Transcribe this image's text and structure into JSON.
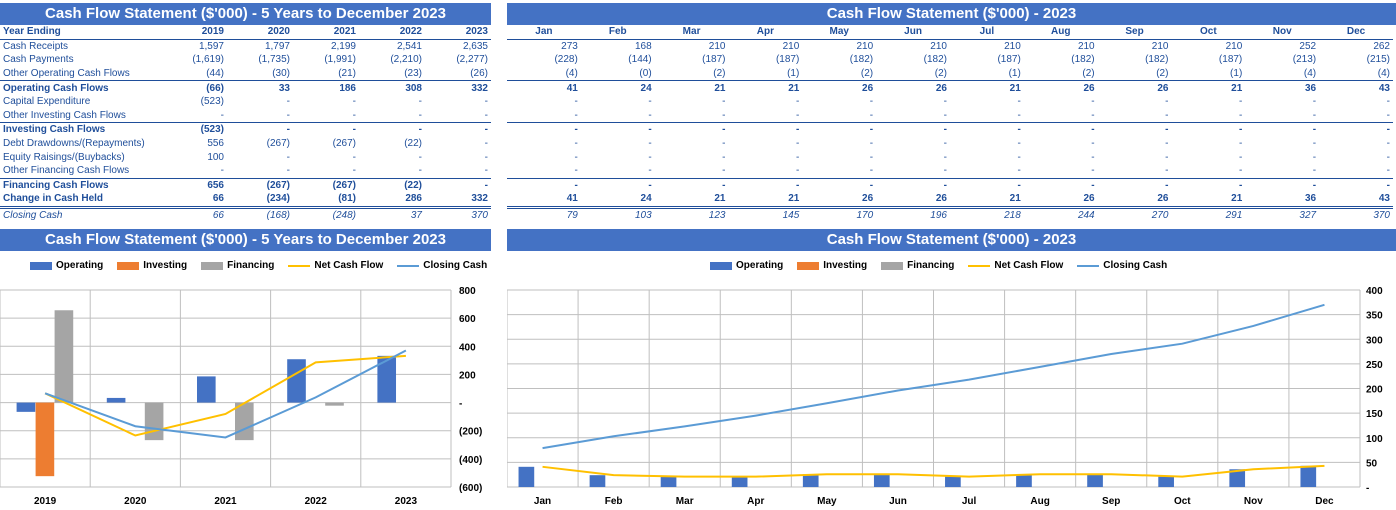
{
  "left_table": {
    "title": "Cash Flow Statement ($'000) - 5 Years to December 2023",
    "header_label": "Year Ending",
    "columns": [
      "2019",
      "2020",
      "2021",
      "2022",
      "2023"
    ],
    "rows": [
      {
        "label": "Cash Receipts",
        "values": [
          "1,597",
          "1,797",
          "2,199",
          "2,541",
          "2,635"
        ]
      },
      {
        "label": "Cash Payments",
        "values": [
          "(1,619)",
          "(1,735)",
          "(1,991)",
          "(2,210)",
          "(2,277)"
        ]
      },
      {
        "label": "Other Operating Cash Flows",
        "values": [
          "(44)",
          "(30)",
          "(21)",
          "(23)",
          "(26)"
        ]
      },
      {
        "label": "Operating Cash Flows",
        "values": [
          "(66)",
          "33",
          "186",
          "308",
          "332"
        ]
      },
      {
        "label": "Capital Expenditure",
        "values": [
          "(523)",
          "-",
          "-",
          "-",
          "-"
        ]
      },
      {
        "label": "Other Investing Cash Flows",
        "values": [
          "-",
          "-",
          "-",
          "-",
          "-"
        ]
      },
      {
        "label": "Investing Cash Flows",
        "values": [
          "(523)",
          "-",
          "-",
          "-",
          "-"
        ]
      },
      {
        "label": "Debt Drawdowns/(Repayments)",
        "values": [
          "556",
          "(267)",
          "(267)",
          "(22)",
          "-"
        ]
      },
      {
        "label": "Equity Raisings/(Buybacks)",
        "values": [
          "100",
          "-",
          "-",
          "-",
          "-"
        ]
      },
      {
        "label": "Other Financing Cash Flows",
        "values": [
          "-",
          "-",
          "-",
          "-",
          "-"
        ]
      },
      {
        "label": "Financing Cash Flows",
        "values": [
          "656",
          "(267)",
          "(267)",
          "(22)",
          "-"
        ]
      },
      {
        "label": "Change in Cash Held",
        "values": [
          "66",
          "(234)",
          "(81)",
          "286",
          "332"
        ]
      },
      {
        "label": "Closing Cash",
        "values": [
          "66",
          "(168)",
          "(248)",
          "37",
          "370"
        ]
      }
    ]
  },
  "right_table": {
    "title": "Cash Flow Statement ($'000) - 2023",
    "columns": [
      "Jan",
      "Feb",
      "Mar",
      "Apr",
      "May",
      "Jun",
      "Jul",
      "Aug",
      "Sep",
      "Oct",
      "Nov",
      "Dec"
    ],
    "rows": [
      {
        "values": [
          "273",
          "168",
          "210",
          "210",
          "210",
          "210",
          "210",
          "210",
          "210",
          "210",
          "252",
          "262"
        ]
      },
      {
        "values": [
          "(228)",
          "(144)",
          "(187)",
          "(187)",
          "(182)",
          "(182)",
          "(187)",
          "(182)",
          "(182)",
          "(187)",
          "(213)",
          "(215)"
        ]
      },
      {
        "values": [
          "(4)",
          "(0)",
          "(2)",
          "(1)",
          "(2)",
          "(2)",
          "(1)",
          "(2)",
          "(2)",
          "(1)",
          "(4)",
          "(4)"
        ]
      },
      {
        "values": [
          "41",
          "24",
          "21",
          "21",
          "26",
          "26",
          "21",
          "26",
          "26",
          "21",
          "36",
          "43"
        ]
      },
      {
        "values": [
          "-",
          "-",
          "-",
          "-",
          "-",
          "-",
          "-",
          "-",
          "-",
          "-",
          "-",
          "-"
        ]
      },
      {
        "values": [
          "-",
          "-",
          "-",
          "-",
          "-",
          "-",
          "-",
          "-",
          "-",
          "-",
          "-",
          "-"
        ]
      },
      {
        "values": [
          "-",
          "-",
          "-",
          "-",
          "-",
          "-",
          "-",
          "-",
          "-",
          "-",
          "-",
          "-"
        ]
      },
      {
        "values": [
          "-",
          "-",
          "-",
          "-",
          "-",
          "-",
          "-",
          "-",
          "-",
          "-",
          "-",
          "-"
        ]
      },
      {
        "values": [
          "-",
          "-",
          "-",
          "-",
          "-",
          "-",
          "-",
          "-",
          "-",
          "-",
          "-",
          "-"
        ]
      },
      {
        "values": [
          "-",
          "-",
          "-",
          "-",
          "-",
          "-",
          "-",
          "-",
          "-",
          "-",
          "-",
          "-"
        ]
      },
      {
        "values": [
          "-",
          "-",
          "-",
          "-",
          "-",
          "-",
          "-",
          "-",
          "-",
          "-",
          "-",
          "-"
        ]
      },
      {
        "values": [
          "41",
          "24",
          "21",
          "21",
          "26",
          "26",
          "21",
          "26",
          "26",
          "21",
          "36",
          "43"
        ]
      },
      {
        "values": [
          "79",
          "103",
          "123",
          "145",
          "170",
          "196",
          "218",
          "244",
          "270",
          "291",
          "327",
          "370"
        ]
      }
    ]
  },
  "colors": {
    "header_bg": "#4472c4",
    "operating": "#4472c4",
    "investing": "#ed7d31",
    "financing": "#a5a5a5",
    "net_cash_flow": "#ffc000",
    "closing_cash": "#5b9bd5",
    "text": "#1f4e9a"
  },
  "legend": [
    "Operating",
    "Investing",
    "Financing",
    "Net Cash Flow",
    "Closing Cash"
  ],
  "chart_data": [
    {
      "type": "bar",
      "title": "Cash Flow Statement ($'000) - 5 Years to December 2023",
      "categories": [
        "2019",
        "2020",
        "2021",
        "2022",
        "2023"
      ],
      "series": [
        {
          "name": "Operating",
          "kind": "bar",
          "values": [
            -66,
            33,
            186,
            308,
            332
          ]
        },
        {
          "name": "Investing",
          "kind": "bar",
          "values": [
            -523,
            0,
            0,
            0,
            0
          ]
        },
        {
          "name": "Financing",
          "kind": "bar",
          "values": [
            656,
            -267,
            -267,
            -22,
            0
          ]
        },
        {
          "name": "Net Cash Flow",
          "kind": "line",
          "values": [
            66,
            -234,
            -81,
            286,
            332
          ]
        },
        {
          "name": "Closing Cash",
          "kind": "line",
          "values": [
            66,
            -168,
            -248,
            37,
            370
          ]
        }
      ],
      "ylim": [
        -600,
        800
      ],
      "yticks": [
        -600,
        -400,
        -200,
        0,
        200,
        400,
        600,
        800
      ],
      "ytick_labels": [
        "(600)",
        "(400)",
        "(200)",
        "-",
        "200",
        "400",
        "600",
        "800"
      ],
      "grid": true,
      "legend_position": "top"
    },
    {
      "type": "bar",
      "title": "Cash Flow Statement ($'000) - 2023",
      "categories": [
        "Jan",
        "Feb",
        "Mar",
        "Apr",
        "May",
        "Jun",
        "Jul",
        "Aug",
        "Sep",
        "Oct",
        "Nov",
        "Dec"
      ],
      "series": [
        {
          "name": "Operating",
          "kind": "bar",
          "values": [
            41,
            24,
            21,
            21,
            26,
            26,
            21,
            26,
            26,
            21,
            36,
            43
          ]
        },
        {
          "name": "Investing",
          "kind": "bar",
          "values": [
            0,
            0,
            0,
            0,
            0,
            0,
            0,
            0,
            0,
            0,
            0,
            0
          ]
        },
        {
          "name": "Financing",
          "kind": "bar",
          "values": [
            0,
            0,
            0,
            0,
            0,
            0,
            0,
            0,
            0,
            0,
            0,
            0
          ]
        },
        {
          "name": "Net Cash Flow",
          "kind": "line",
          "values": [
            41,
            24,
            21,
            21,
            26,
            26,
            21,
            26,
            26,
            21,
            36,
            43
          ]
        },
        {
          "name": "Closing Cash",
          "kind": "line",
          "values": [
            79,
            103,
            123,
            145,
            170,
            196,
            218,
            244,
            270,
            291,
            327,
            370
          ]
        }
      ],
      "ylim": [
        0,
        400
      ],
      "yticks": [
        0,
        50,
        100,
        150,
        200,
        250,
        300,
        350,
        400
      ],
      "ytick_labels": [
        "-",
        "50",
        "100",
        "150",
        "200",
        "250",
        "300",
        "350",
        "400"
      ],
      "grid": true,
      "legend_position": "top"
    }
  ]
}
